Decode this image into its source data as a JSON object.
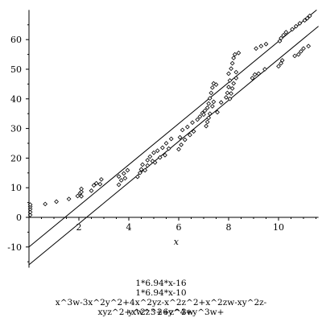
{
  "chart_data": {
    "type": "scatter",
    "xlabel": "x",
    "xlim": [
      0,
      11.6
    ],
    "ylim": [
      -17,
      70
    ],
    "x_ticks": [
      2,
      4,
      6,
      8,
      10
    ],
    "y_ticks": [
      -10,
      0,
      10,
      20,
      30,
      40,
      50,
      60
    ],
    "grid": false,
    "lines": [
      {
        "name": "1*6.94*x-16",
        "slope": 6.94,
        "intercept": -16
      },
      {
        "name": "1*6.94*x-10",
        "slope": 6.94,
        "intercept": -10
      }
    ],
    "points": [
      [
        0.05,
        0.8
      ],
      [
        0.05,
        1.8
      ],
      [
        0.05,
        2.8
      ],
      [
        0.05,
        3.6
      ],
      [
        0.05,
        4.3
      ],
      [
        0.65,
        4.5
      ],
      [
        1.1,
        5.3
      ],
      [
        1.6,
        6.2
      ],
      [
        1.95,
        7.2
      ],
      [
        2.05,
        8.2
      ],
      [
        2.1,
        7.1
      ],
      [
        2.1,
        8.6
      ],
      [
        2.1,
        9.6
      ],
      [
        2.5,
        9.0
      ],
      [
        2.6,
        10.8
      ],
      [
        2.7,
        11.5
      ],
      [
        2.85,
        11.2
      ],
      [
        2.9,
        12.8
      ],
      [
        3.6,
        11.0
      ],
      [
        3.6,
        13.8
      ],
      [
        3.7,
        12.5
      ],
      [
        3.8,
        14.8
      ],
      [
        3.85,
        13.2
      ],
      [
        3.95,
        15.9
      ],
      [
        4.35,
        13.7
      ],
      [
        4.45,
        15.0
      ],
      [
        4.5,
        16.2
      ],
      [
        4.55,
        17.8
      ],
      [
        4.65,
        15.9
      ],
      [
        4.75,
        17.5
      ],
      [
        4.75,
        19.3
      ],
      [
        4.85,
        20.5
      ],
      [
        4.95,
        19.0
      ],
      [
        5.0,
        21.8
      ],
      [
        5.05,
        18.5
      ],
      [
        5.15,
        22.5
      ],
      [
        5.25,
        20.2
      ],
      [
        5.35,
        23.5
      ],
      [
        5.45,
        21.0
      ],
      [
        5.5,
        25.0
      ],
      [
        5.6,
        23.2
      ],
      [
        5.7,
        26.5
      ],
      [
        6.0,
        23.0
      ],
      [
        6.05,
        27.0
      ],
      [
        6.1,
        24.5
      ],
      [
        6.15,
        29.5
      ],
      [
        6.25,
        26.2
      ],
      [
        6.35,
        30.5
      ],
      [
        6.45,
        27.8
      ],
      [
        6.55,
        32.0
      ],
      [
        6.6,
        29.0
      ],
      [
        6.75,
        33.0
      ],
      [
        6.85,
        34.0
      ],
      [
        6.95,
        35.2
      ],
      [
        7.0,
        34.7
      ],
      [
        7.05,
        36.0
      ],
      [
        7.1,
        30.8
      ],
      [
        7.15,
        32.2
      ],
      [
        7.15,
        37.0
      ],
      [
        7.2,
        33.6
      ],
      [
        7.2,
        38.4
      ],
      [
        7.25,
        35.0
      ],
      [
        7.25,
        40.2
      ],
      [
        7.3,
        42.0
      ],
      [
        7.35,
        43.8
      ],
      [
        7.35,
        37.5
      ],
      [
        7.4,
        45.2
      ],
      [
        7.4,
        39.0
      ],
      [
        7.5,
        44.8
      ],
      [
        7.55,
        35.5
      ],
      [
        7.7,
        38.8
      ],
      [
        7.9,
        40.5
      ],
      [
        7.95,
        42.0
      ],
      [
        8.0,
        44.0
      ],
      [
        8.0,
        48.5
      ],
      [
        8.05,
        46.2
      ],
      [
        8.05,
        40.0
      ],
      [
        8.1,
        50.2
      ],
      [
        8.1,
        41.8
      ],
      [
        8.15,
        52.0
      ],
      [
        8.15,
        43.5
      ],
      [
        8.2,
        53.8
      ],
      [
        8.2,
        45.2
      ],
      [
        8.25,
        55.0
      ],
      [
        8.3,
        47.0
      ],
      [
        8.3,
        49.0
      ],
      [
        8.4,
        55.5
      ],
      [
        8.95,
        47.0
      ],
      [
        9.05,
        48.2
      ],
      [
        9.1,
        57.0
      ],
      [
        9.2,
        48.5
      ],
      [
        9.3,
        57.8
      ],
      [
        9.45,
        50.0
      ],
      [
        9.5,
        58.5
      ],
      [
        10.0,
        51.0
      ],
      [
        10.05,
        59.5
      ],
      [
        10.1,
        52.0
      ],
      [
        10.1,
        60.5
      ],
      [
        10.15,
        53.0
      ],
      [
        10.2,
        61.5
      ],
      [
        10.3,
        62.5
      ],
      [
        10.55,
        63.5
      ],
      [
        10.65,
        54.5
      ],
      [
        10.7,
        64.5
      ],
      [
        10.8,
        55.0
      ],
      [
        10.85,
        65.5
      ],
      [
        10.9,
        56.0
      ],
      [
        11.0,
        57.0
      ],
      [
        11.05,
        66.5
      ],
      [
        11.15,
        67.2
      ],
      [
        11.2,
        57.8
      ],
      [
        11.25,
        68.0
      ]
    ]
  },
  "captions": [
    "1*6.94*x-16",
    "1*6.94*x-10",
    "x^3w-3x^2y^2+4x^2yz-x^2z^2+x^2zw-xy^2z-xyz^2+xw^3+6y^4+y^3w+",
    "y^2z^2+z^3w"
  ]
}
